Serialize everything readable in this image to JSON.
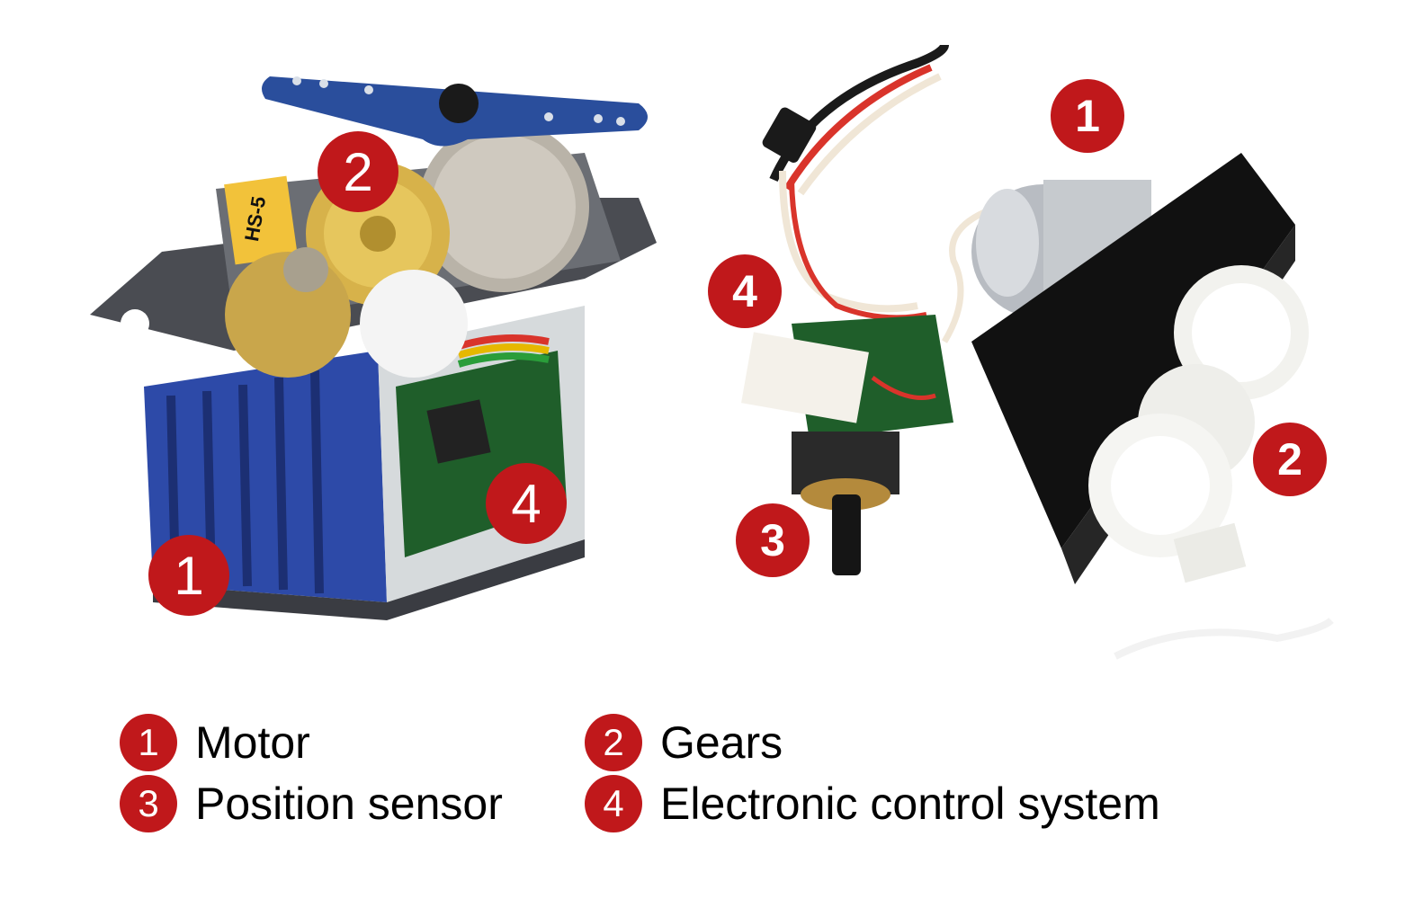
{
  "colors": {
    "badge": "#c0181b",
    "badge_text": "#ffffff",
    "label_text": "#000000"
  },
  "photos": {
    "left": {
      "description_icon": "servo-cutaway-photo",
      "badges": {
        "gear": "2",
        "electronics": "4",
        "motor": "1"
      }
    },
    "right": {
      "description_icon": "servo-disassembled-photo",
      "badges": {
        "motor": "1",
        "electronics": "4",
        "sensor": "3",
        "gear": "2"
      }
    }
  },
  "legend": [
    {
      "number": "1",
      "label": "Motor"
    },
    {
      "number": "2",
      "label": "Gears"
    },
    {
      "number": "3",
      "label": "Position sensor"
    },
    {
      "number": "4",
      "label": "Electronic control system"
    }
  ]
}
